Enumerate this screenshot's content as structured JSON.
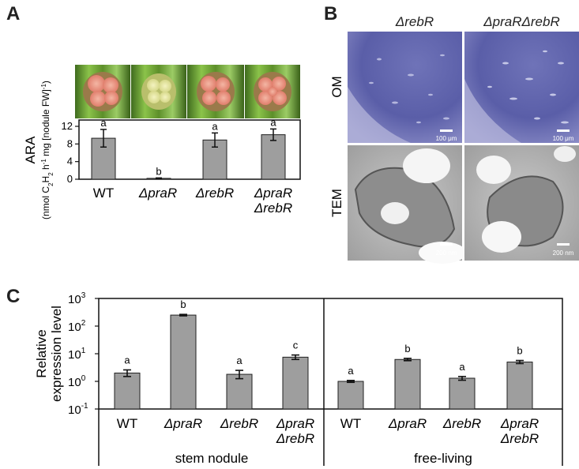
{
  "panels": {
    "a": "A",
    "b": "B",
    "c": "C"
  },
  "panel_a": {
    "ylabel_main": "ARA",
    "ylabel_units_parts": [
      "(nmol C",
      "2",
      "H",
      "2",
      " h",
      "-1",
      " mg [nodule FW]",
      "-1",
      ")"
    ],
    "yticks": [
      "0",
      "4",
      "8",
      "12"
    ],
    "categories": [
      {
        "line1": "WT",
        "line2": ""
      },
      {
        "line1": "ΔpraR",
        "line2": ""
      },
      {
        "line1": "ΔrebR",
        "line2": ""
      },
      {
        "line1": "ΔpraR",
        "line2": "ΔrebR"
      }
    ],
    "letters": [
      "a",
      "b",
      "a",
      "a"
    ]
  },
  "panel_b": {
    "col_titles": [
      "ΔrebR",
      "ΔpraRΔrebR"
    ],
    "row_labels": [
      "OM",
      "TEM"
    ],
    "scale_om": "100 μm",
    "scale_tem": "200 nm"
  },
  "panel_c": {
    "ylabel_line1": "Relative",
    "ylabel_line2": "expression level",
    "ytick_base": "10",
    "ytick_exps": [
      "3",
      "2",
      "1",
      "0",
      "-1"
    ],
    "categories": [
      {
        "line1": "WT",
        "line2": ""
      },
      {
        "line1": "ΔpraR",
        "line2": ""
      },
      {
        "line1": "ΔrebR",
        "line2": ""
      },
      {
        "line1": "ΔpraR",
        "line2": "ΔrebR"
      },
      {
        "line1": "WT",
        "line2": ""
      },
      {
        "line1": "ΔpraR",
        "line2": ""
      },
      {
        "line1": "ΔrebR",
        "line2": ""
      },
      {
        "line1": "ΔpraR",
        "line2": "ΔrebR"
      }
    ],
    "letters": [
      "a",
      "b",
      "a",
      "c",
      "a",
      "b",
      "a",
      "b"
    ],
    "groups": [
      "stem nodule",
      "free-living"
    ]
  },
  "chart_data": [
    {
      "type": "bar",
      "panel": "A",
      "ylabel": "ARA (nmol C2H2 h-1 mg [nodule FW]-1)",
      "categories": [
        "WT",
        "ΔpraR",
        "ΔrebR",
        "ΔpraR ΔrebR"
      ],
      "values": [
        9.3,
        0.2,
        8.9,
        10.1
      ],
      "errors": [
        2.0,
        0.1,
        1.6,
        1.3
      ],
      "ylim": [
        0,
        12
      ],
      "yticks": [
        0,
        4,
        8,
        12
      ]
    },
    {
      "type": "bar",
      "panel": "C",
      "yscale": "log",
      "ylabel": "Relative expression level",
      "categories": [
        "WT",
        "ΔpraR",
        "ΔrebR",
        "ΔpraR ΔrebR",
        "WT",
        "ΔpraR",
        "ΔrebR",
        "ΔpraR ΔrebR"
      ],
      "groups": [
        "stem nodule",
        "stem nodule",
        "stem nodule",
        "stem nodule",
        "free-living",
        "free-living",
        "free-living",
        "free-living"
      ],
      "values": [
        2.0,
        250,
        1.8,
        7.5,
        1.0,
        6.2,
        1.3,
        5.0
      ],
      "err_low": [
        1.5,
        235,
        1.25,
        6.2,
        0.92,
        5.6,
        1.1,
        4.4
      ],
      "err_high": [
        2.6,
        265,
        2.5,
        9.0,
        1.08,
        6.8,
        1.5,
        5.7
      ],
      "ylim": [
        0.1,
        1000
      ]
    }
  ]
}
